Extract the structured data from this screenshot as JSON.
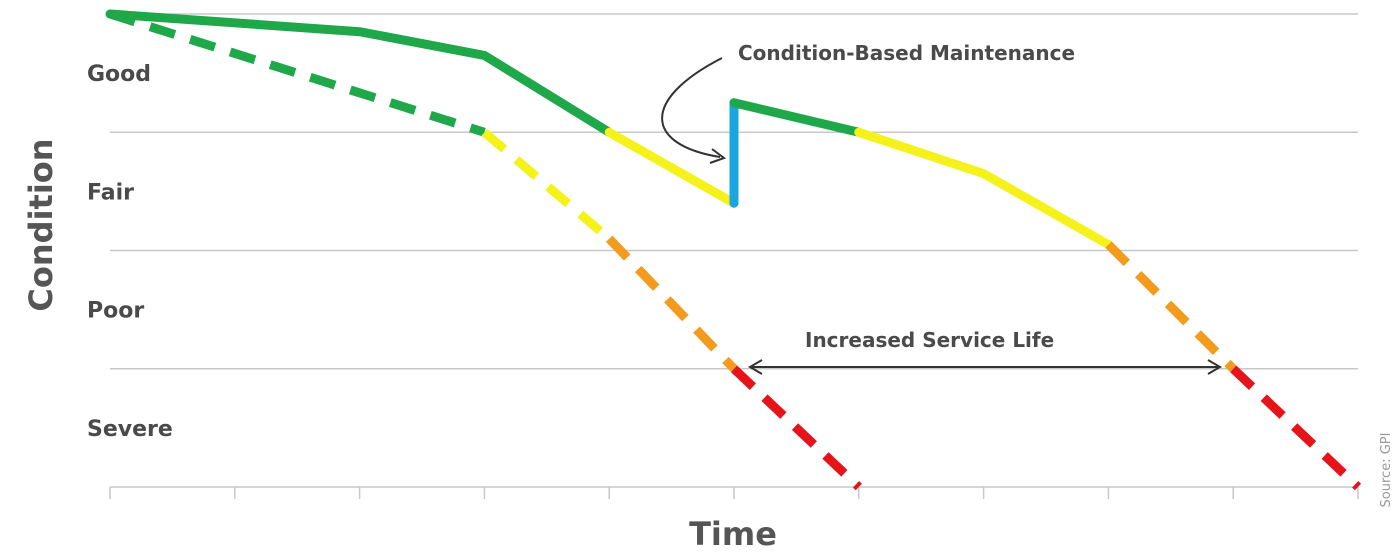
{
  "chart_data": {
    "type": "line",
    "xlabel": "Time",
    "ylabel": "Condition",
    "xlim": [
      0,
      10
    ],
    "ylim": [
      0,
      4
    ],
    "x_ticks": [
      0,
      1,
      2,
      3,
      4,
      5,
      6,
      7,
      8,
      9,
      10
    ],
    "y_bands": [
      {
        "label": "Good",
        "y": 3.5
      },
      {
        "label": "Fair",
        "y": 2.5
      },
      {
        "label": "Poor",
        "y": 1.5
      },
      {
        "label": "Severe",
        "y": 0.5
      }
    ],
    "gridlines_y": [
      1,
      2,
      3,
      4
    ],
    "colors": {
      "good": "#1fa84a",
      "fair": "#f4f21a",
      "poor": "#f29b1c",
      "severe": "#e5141b",
      "maintenance": "#19a6e0",
      "grid": "#c8c8c8",
      "annotation": "#333333"
    },
    "series": [
      {
        "style": "dashed",
        "points": [
          [
            0,
            4.0
          ],
          [
            3,
            3.0
          ],
          [
            4,
            2.1
          ],
          [
            5,
            1.0
          ],
          [
            6,
            0.0
          ]
        ],
        "segments": [
          {
            "color": "good",
            "from": 0,
            "to": 1
          },
          {
            "color": "fair",
            "from": 1,
            "to": 2
          },
          {
            "color": "poor",
            "from": 2,
            "to": 3
          },
          {
            "color": "severe",
            "from": 3,
            "to": 4
          }
        ]
      },
      {
        "style": "solid",
        "points": [
          [
            0,
            4.0
          ],
          [
            2,
            3.85
          ],
          [
            3,
            3.65
          ],
          [
            4,
            3.0
          ],
          [
            5,
            2.4
          ],
          [
            5,
            3.25
          ],
          [
            6,
            3.0
          ],
          [
            7,
            2.65
          ],
          [
            8,
            2.05
          ],
          [
            9,
            1.0
          ],
          [
            10,
            0.0
          ]
        ],
        "segments": [
          {
            "color": "good",
            "from": 0,
            "to": 3
          },
          {
            "color": "fair",
            "from": 3,
            "to": 4
          },
          {
            "color": "maintenance",
            "from": 4,
            "to": 5
          },
          {
            "color": "good",
            "from": 5,
            "to": 6
          },
          {
            "color": "fair",
            "from": 6,
            "to": 8
          },
          {
            "color": "poor",
            "from": 8,
            "to": 9,
            "dashed": true
          },
          {
            "color": "severe",
            "from": 9,
            "to": 10,
            "dashed": true
          }
        ]
      }
    ],
    "annotations": [
      {
        "text": "Condition-Based Maintenance",
        "x": 5.0,
        "y": 3.25
      },
      {
        "text": "Increased Service Life",
        "from_x": 5.0,
        "to_x": 8.9,
        "y": 1.0
      }
    ],
    "source": "Source: GPI"
  }
}
